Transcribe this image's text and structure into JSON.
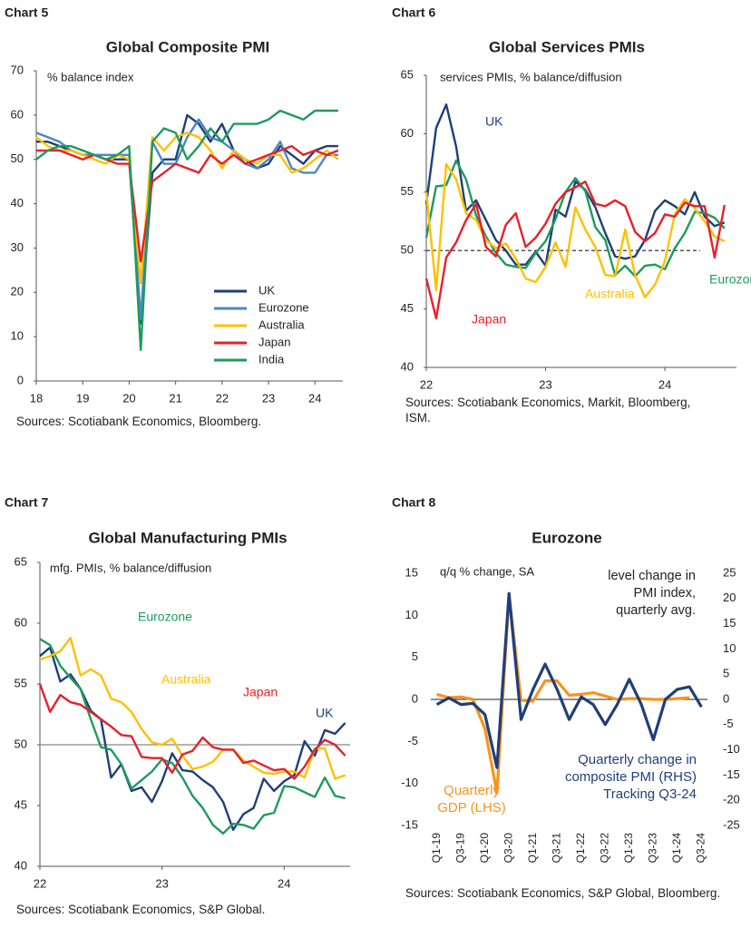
{
  "chart_data": [
    {
      "type": "line",
      "label": "Chart 5",
      "title": "Global Composite PMI",
      "subtitle": "% balance index",
      "source": "Sources: Scotiabank Economics, Bloomberg.",
      "x": [
        2018,
        2018.25,
        2018.5,
        2018.75,
        2019,
        2019.25,
        2019.5,
        2019.75,
        2020,
        2020.25,
        2020.5,
        2020.75,
        2021,
        2021.25,
        2021.5,
        2021.75,
        2022,
        2022.25,
        2022.5,
        2022.75,
        2023,
        2023.25,
        2023.5,
        2023.75,
        2024,
        2024.25,
        2024.5
      ],
      "xlim": [
        2018,
        2024.6
      ],
      "xticks": [
        {
          "value": 2018,
          "label": "18"
        },
        {
          "value": 2019,
          "label": "19"
        },
        {
          "value": 2020,
          "label": "20"
        },
        {
          "value": 2021,
          "label": "21"
        },
        {
          "value": 2022,
          "label": "22"
        },
        {
          "value": 2023,
          "label": "23"
        },
        {
          "value": 2024,
          "label": "24"
        }
      ],
      "ylim": [
        0,
        70
      ],
      "yticks": [
        0,
        10,
        20,
        30,
        40,
        50,
        60,
        70
      ],
      "legend": "lower right",
      "series": [
        {
          "name": "UK",
          "color": "#1f3f77",
          "values": [
            54,
            54,
            53,
            52,
            51,
            51,
            50,
            50,
            50,
            13,
            47,
            50,
            50,
            60,
            58,
            54,
            58,
            52,
            50,
            48,
            49,
            53,
            51,
            49,
            52,
            53,
            53
          ]
        },
        {
          "name": "Eurozone",
          "color": "#4a86c5",
          "values": [
            56,
            55,
            54,
            52,
            51,
            51,
            51,
            51,
            51,
            14,
            54,
            49,
            49,
            55,
            59,
            55,
            54,
            52,
            49,
            48,
            50,
            54,
            48,
            47,
            47,
            51,
            51
          ]
        },
        {
          "name": "Australia",
          "color": "#ffc000",
          "values": [
            55,
            53,
            52,
            52,
            51,
            50,
            49,
            51,
            50,
            22,
            55,
            52,
            55,
            56,
            55,
            52,
            48,
            52,
            50,
            49,
            51,
            51,
            47,
            48,
            50,
            52,
            50
          ]
        },
        {
          "name": "Japan",
          "color": "#e8202a",
          "values": [
            52,
            52,
            52,
            51,
            50,
            51,
            50,
            49,
            49,
            27,
            45,
            47,
            49,
            48,
            47,
            51,
            49,
            51,
            49,
            50,
            51,
            52,
            53,
            51,
            52,
            51,
            52
          ]
        },
        {
          "name": "India",
          "color": "#1e9a5e",
          "values": [
            50,
            52,
            53,
            53,
            52,
            51,
            50,
            51,
            53,
            7,
            54,
            57,
            56,
            50,
            53,
            57,
            54,
            58,
            58,
            58,
            59,
            61,
            60,
            59,
            61,
            61,
            61
          ]
        }
      ]
    },
    {
      "type": "line",
      "label": "Chart 6",
      "title": "Global Services PMIs",
      "subtitle": "services PMIs, % balance/diffusion",
      "source": "Sources: Scotiabank Economics, Markit, Bloomberg, ISM.",
      "x": [
        2022,
        2022.083,
        2022.167,
        2022.25,
        2022.333,
        2022.417,
        2022.5,
        2022.583,
        2022.667,
        2022.75,
        2022.833,
        2022.917,
        2023,
        2023.083,
        2023.167,
        2023.25,
        2023.333,
        2023.417,
        2023.5,
        2023.583,
        2023.667,
        2023.75,
        2023.833,
        2023.917,
        2024,
        2024.083,
        2024.167,
        2024.25,
        2024.333,
        2024.417,
        2024.5
      ],
      "xlim": [
        2022,
        2024.6
      ],
      "xticks": [
        {
          "value": 2022,
          "label": "22"
        },
        {
          "value": 2023,
          "label": "23"
        },
        {
          "value": 2024,
          "label": "24"
        }
      ],
      "ylim": [
        40,
        65
      ],
      "yticks": [
        40,
        45,
        50,
        55,
        60,
        65
      ],
      "legend": "inline",
      "reference_line": 50,
      "reference_style": "dashed",
      "series": [
        {
          "name": "UK",
          "color": "#1f3f77",
          "values": [
            54,
            60.5,
            62.5,
            58.9,
            53.4,
            54.3,
            52.6,
            50.9,
            50.0,
            48.8,
            48.8,
            49.9,
            48.7,
            53.5,
            52.9,
            55.9,
            55.2,
            53.7,
            51.5,
            49.5,
            49.3,
            49.5,
            50.9,
            53.4,
            54.3,
            53.8,
            53.1,
            55.0,
            52.9,
            52.1,
            52.4
          ]
        },
        {
          "name": "Eurozone",
          "color": "#1e9a5e",
          "values": [
            51.1,
            55.5,
            55.6,
            57.7,
            56.1,
            53.0,
            51.2,
            49.8,
            48.8,
            48.6,
            48.5,
            49.8,
            50.8,
            52.7,
            55.0,
            56.2,
            55.1,
            52.0,
            50.9,
            47.9,
            48.7,
            47.8,
            48.7,
            48.8,
            48.4,
            50.2,
            51.5,
            53.3,
            53.2,
            52.8,
            51.9
          ]
        },
        {
          "name": "Australia",
          "color": "#ffc000",
          "values": [
            55,
            46.6,
            57.4,
            56.1,
            53.2,
            52.6,
            50.9,
            50.2,
            50.6,
            49.3,
            47.6,
            47.3,
            48.6,
            50.7,
            48.6,
            53.7,
            51.8,
            50.3,
            47.9,
            47.8,
            51.8,
            47.9,
            46.0,
            47.1,
            49.1,
            53.1,
            54.4,
            53.6,
            52.5,
            51.2,
            50.8
          ]
        },
        {
          "name": "Japan",
          "color": "#e8202a",
          "values": [
            47.6,
            44.2,
            49.4,
            50.7,
            52.6,
            54.0,
            50.3,
            49.5,
            52.2,
            53.2,
            50.3,
            51.1,
            52.3,
            54.0,
            55.0,
            55.4,
            55.9,
            54.0,
            53.8,
            54.3,
            53.8,
            51.6,
            50.8,
            51.5,
            53.1,
            52.9,
            54.1,
            53.8,
            53.8,
            49.4,
            53.9
          ]
        }
      ]
    },
    {
      "type": "line",
      "label": "Chart 7",
      "title": "Global Manufacturing PMIs",
      "subtitle": "mfg. PMIs, % balance/diffusion",
      "source": "Sources: Scotiabank Economics, S&P Global.",
      "x": [
        2022,
        2022.083,
        2022.167,
        2022.25,
        2022.333,
        2022.417,
        2022.5,
        2022.583,
        2022.667,
        2022.75,
        2022.833,
        2022.917,
        2023,
        2023.083,
        2023.167,
        2023.25,
        2023.333,
        2023.417,
        2023.5,
        2023.583,
        2023.667,
        2023.75,
        2023.833,
        2023.917,
        2024,
        2024.083,
        2024.167,
        2024.25,
        2024.333,
        2024.417,
        2024.5
      ],
      "xlim": [
        2022,
        2024.54
      ],
      "xticks": [
        {
          "value": 2022,
          "label": "22"
        },
        {
          "value": 2023,
          "label": "23"
        },
        {
          "value": 2024,
          "label": "24"
        }
      ],
      "ylim": [
        40,
        65
      ],
      "yticks": [
        40,
        45,
        50,
        55,
        60,
        65
      ],
      "legend": "inline",
      "reference_line": 50,
      "reference_style": "solid",
      "series": [
        {
          "name": "UK",
          "color": "#1f3f77",
          "values": [
            57.3,
            58.0,
            55.2,
            55.8,
            54.6,
            52.8,
            52.1,
            47.3,
            48.4,
            46.2,
            46.5,
            45.3,
            47.0,
            49.3,
            47.9,
            47.8,
            47.1,
            46.5,
            45.3,
            43.0,
            44.3,
            44.8,
            47.2,
            46.2,
            47.0,
            47.5,
            50.3,
            49.1,
            51.2,
            50.9,
            51.8
          ]
        },
        {
          "name": "Eurozone",
          "color": "#1e9a5e",
          "values": [
            58.7,
            58.2,
            56.5,
            55.5,
            54.6,
            52.1,
            49.8,
            49.6,
            48.4,
            46.4,
            47.1,
            47.8,
            48.8,
            48.5,
            47.3,
            45.8,
            44.8,
            43.4,
            42.7,
            43.5,
            43.4,
            43.1,
            44.2,
            44.4,
            46.6,
            46.5,
            46.1,
            45.7,
            47.3,
            45.8,
            45.6
          ]
        },
        {
          "name": "Australia",
          "color": "#ffc000",
          "values": [
            57.0,
            57.3,
            57.7,
            58.8,
            55.7,
            56.2,
            55.7,
            53.8,
            53.5,
            52.7,
            51.3,
            50.2,
            50.0,
            50.5,
            49.1,
            48.0,
            48.2,
            48.6,
            49.6,
            49.6,
            48.7,
            48.2,
            47.7,
            47.6,
            47.8,
            47.8,
            47.3,
            49.7,
            49.7,
            47.2,
            47.5
          ]
        },
        {
          "name": "Japan",
          "color": "#e8202a",
          "values": [
            55.0,
            52.7,
            54.1,
            53.5,
            53.3,
            52.7,
            52.1,
            51.5,
            50.8,
            50.7,
            49.0,
            48.9,
            48.9,
            47.7,
            49.2,
            49.5,
            50.6,
            49.8,
            49.6,
            49.6,
            48.5,
            48.7,
            48.3,
            47.9,
            48.0,
            47.2,
            48.2,
            49.6,
            50.4,
            50.0,
            49.1
          ]
        }
      ]
    },
    {
      "type": "line",
      "label": "Chart 8",
      "title": "Eurozone",
      "subtitle": "q/q % change, SA",
      "y2_label": "level change in PMI index, quarterly avg.",
      "source": "Sources: Scotiabank Economics, S&P Global, Bloomberg.",
      "categories": [
        "Q1-19",
        null,
        "Q3-19",
        null,
        "Q1-20",
        null,
        "Q3-20",
        null,
        "Q1-21",
        null,
        "Q3-21",
        null,
        "Q1-22",
        null,
        "Q3-22",
        null,
        "Q1-23",
        null,
        "Q3-23",
        null,
        "Q1-24",
        null,
        "Q3-24"
      ],
      "ylim": [
        -15,
        15
      ],
      "yticks": [
        -15,
        -10,
        -5,
        0,
        5,
        10,
        15
      ],
      "y2lim": [
        -25,
        25
      ],
      "y2ticks": [
        -25,
        -20,
        -15,
        -10,
        -5,
        0,
        5,
        10,
        15,
        20,
        25
      ],
      "legend": "inline",
      "series": [
        {
          "name": "Quarterly GDP (LHS)",
          "color": "#f7941d",
          "values": [
            0.6,
            0.2,
            0.3,
            0.0,
            -3.5,
            -11.1,
            12.4,
            -0.1,
            -0.2,
            2.2,
            2.2,
            0.5,
            0.6,
            0.8,
            0.4,
            0.0,
            0.1,
            0.1,
            0.0,
            0.0,
            0.1,
            0.2,
            null
          ]
        },
        {
          "name": "Quarterly change in composite PMI (RHS) Tracking Q3-24",
          "color": "#1f3f77",
          "axis": "y2",
          "values": [
            -1,
            0.3,
            -1,
            -0.8,
            -3,
            -13.5,
            21,
            -4,
            2,
            7,
            2,
            -4,
            0.5,
            -1,
            -5,
            -1,
            4,
            -1,
            -8,
            0,
            2,
            2.5,
            -1.5
          ]
        }
      ]
    }
  ]
}
